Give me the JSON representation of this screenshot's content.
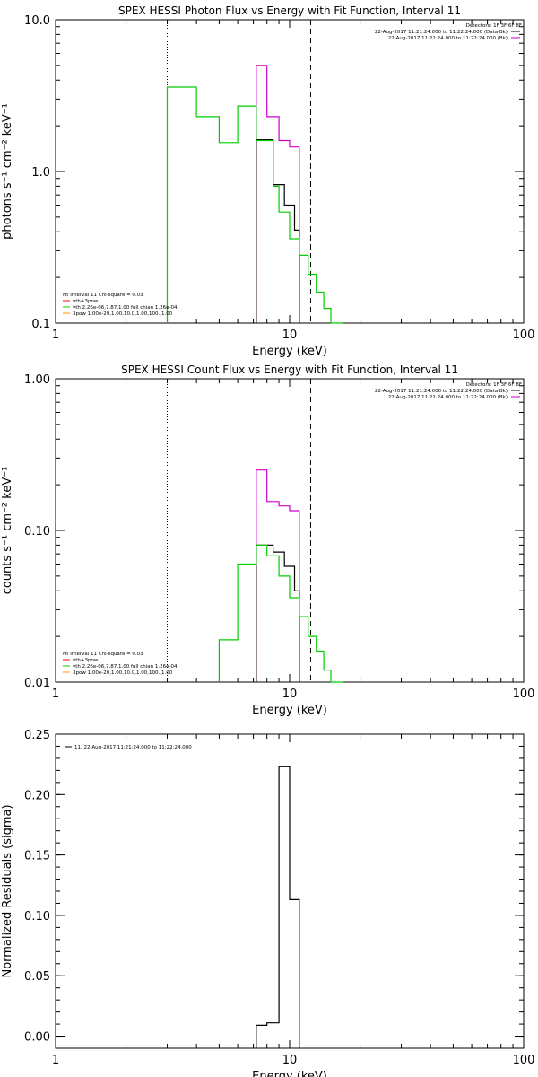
{
  "chart_data": [
    {
      "type": "line",
      "title": "SPEX HESSI Photon Flux vs Energy with Fit Function, Interval 11",
      "xlabel": "Energy (keV)",
      "ylabel": "photons s⁻¹ cm⁻² keV⁻¹",
      "x_scale": "log",
      "y_scale": "log",
      "xlim": [
        1,
        100
      ],
      "ylim": [
        0.1,
        10
      ],
      "x_ticks": [
        {
          "v": 1,
          "label": "1"
        },
        {
          "v": 10,
          "label": "10"
        },
        {
          "v": 100,
          "label": "100"
        }
      ],
      "y_ticks": [
        {
          "v": 0.1,
          "label": "0.1"
        },
        {
          "v": 1,
          "label": "1.0"
        },
        {
          "v": 10,
          "label": "10.0"
        }
      ],
      "vlines": [
        {
          "x": 3.0,
          "style": "dotted"
        },
        {
          "x": 12.3,
          "style": "dashed"
        }
      ],
      "legend_top_right": [
        {
          "text": "Detectors: 1F 3F 6F 8F",
          "line": false,
          "color": "#000000"
        },
        {
          "text": "22-Aug-2017 11:21:24.000 to 11:22:24.000 (Data-Bk)",
          "line": true,
          "color": "#000000"
        },
        {
          "text": "22-Aug-2017 11:21:24.000 to 11:22:24.000 (Bk)",
          "line": true,
          "color": "#cc00cc"
        }
      ],
      "legend_bottom_left": [
        {
          "text": "Fit Interval 11    Chi-square = 0.03",
          "line": false,
          "color": "#000000"
        },
        {
          "text": "vth+3pow",
          "line": true,
          "color": "#ff0000"
        },
        {
          "text": "vth 2.26e-06,7.87,1.00  full chian 1.26e-04",
          "line": true,
          "color": "#00cc00"
        },
        {
          "text": "3pow 1.00e-20,1.00,10.0,1.00,100.,1.00",
          "line": true,
          "color": "#ff9900"
        }
      ],
      "series": [
        {
          "id": "bk",
          "color": "#cc00cc",
          "edges": [
            7.2,
            8.0,
            9.0,
            10.0,
            11.0
          ],
          "values": [
            5.0,
            2.3,
            1.6,
            1.45
          ]
        },
        {
          "id": "data",
          "color": "#000000",
          "edges": [
            7.2,
            8.0,
            8.5,
            9.0,
            9.5,
            10.0,
            10.5,
            11.0
          ],
          "values": [
            1.62,
            1.62,
            0.82,
            0.82,
            0.6,
            0.6,
            0.41
          ]
        },
        {
          "id": "model",
          "color": "#00cc00",
          "edges": [
            3.0,
            3.3,
            4.0,
            5.0,
            6.0,
            7.2,
            8.0,
            8.5,
            9.0,
            10.0,
            11.0,
            12.0,
            13.0,
            14.0,
            15.0,
            16.0,
            17.0
          ],
          "values": [
            3.6,
            3.6,
            2.3,
            1.55,
            2.7,
            1.6,
            1.6,
            0.8,
            0.54,
            0.36,
            0.28,
            0.21,
            0.16,
            0.125,
            0.1,
            0.08
          ]
        }
      ]
    },
    {
      "type": "line",
      "title": "SPEX HESSI Count Flux vs Energy with Fit Function, Interval 11",
      "xlabel": "Energy (keV)",
      "ylabel": "counts s⁻¹ cm⁻² keV⁻¹",
      "x_scale": "log",
      "y_scale": "log",
      "xlim": [
        1,
        100
      ],
      "ylim": [
        0.01,
        1
      ],
      "x_ticks": [
        {
          "v": 1,
          "label": "1"
        },
        {
          "v": 10,
          "label": "10"
        },
        {
          "v": 100,
          "label": "100"
        }
      ],
      "y_ticks": [
        {
          "v": 0.01,
          "label": "0.01"
        },
        {
          "v": 0.1,
          "label": "0.10"
        },
        {
          "v": 1,
          "label": "1.00"
        }
      ],
      "vlines": [
        {
          "x": 3.0,
          "style": "dotted"
        },
        {
          "x": 12.3,
          "style": "dashed"
        }
      ],
      "legend_top_right": [
        {
          "text": "Detectors: 1F 3F 6F 8F",
          "line": false,
          "color": "#000000"
        },
        {
          "text": "22-Aug-2017 11:21:24.000 to 11:22:24.000 (Data-Bk)",
          "line": true,
          "color": "#000000"
        },
        {
          "text": "22-Aug-2017 11:21:24.000 to 11:22:24.000 (Bk)",
          "line": true,
          "color": "#cc00cc"
        }
      ],
      "legend_bottom_left": [
        {
          "text": "Fit Interval 11    Chi-square = 0.03",
          "line": false,
          "color": "#000000"
        },
        {
          "text": "vth+3pow",
          "line": true,
          "color": "#ff0000"
        },
        {
          "text": "vth 2.26e-06,7.87,1.00  full chian 1.26e-04",
          "line": true,
          "color": "#00cc00"
        },
        {
          "text": "3pow 1.00e-20,1.00,10.0,1.00,100.,1.00",
          "line": true,
          "color": "#ff9900"
        }
      ],
      "series": [
        {
          "id": "bk",
          "color": "#cc00cc",
          "edges": [
            7.2,
            8.0,
            9.0,
            10.0,
            11.0
          ],
          "values": [
            0.25,
            0.155,
            0.145,
            0.135
          ]
        },
        {
          "id": "data",
          "color": "#000000",
          "edges": [
            7.2,
            8.0,
            8.5,
            9.0,
            9.5,
            10.0,
            10.5,
            11.0
          ],
          "values": [
            0.08,
            0.08,
            0.072,
            0.072,
            0.058,
            0.058,
            0.04
          ]
        },
        {
          "id": "model",
          "color": "#00cc00",
          "edges": [
            5.0,
            6.0,
            7.2,
            8.0,
            9.0,
            10.0,
            11.0,
            12.0,
            13.0,
            14.0,
            15.0,
            16.0,
            17.0
          ],
          "values": [
            0.019,
            0.06,
            0.08,
            0.068,
            0.05,
            0.036,
            0.027,
            0.02,
            0.016,
            0.012,
            0.0095,
            0.008
          ]
        }
      ]
    },
    {
      "type": "line",
      "title": "",
      "xlabel": "Energy (keV)",
      "ylabel": "Normalized Residuals (sigma)",
      "x_scale": "log",
      "y_scale": "linear",
      "xlim": [
        1,
        100
      ],
      "ylim": [
        -0.01,
        0.25
      ],
      "x_ticks": [
        {
          "v": 1,
          "label": "1"
        },
        {
          "v": 10,
          "label": "10"
        },
        {
          "v": 100,
          "label": "100"
        }
      ],
      "y_ticks": [
        {
          "v": 0,
          "label": "0.00"
        },
        {
          "v": 0.05,
          "label": "0.05"
        },
        {
          "v": 0.1,
          "label": "0.10"
        },
        {
          "v": 0.15,
          "label": "0.15"
        },
        {
          "v": 0.2,
          "label": "0.20"
        },
        {
          "v": 0.25,
          "label": "0.25"
        }
      ],
      "legend_top_left": [
        {
          "text": "11. 22-Aug-2017 11:21:24.000 to 11:22:24.000",
          "line": true,
          "color": "#000000"
        }
      ],
      "series": [
        {
          "id": "resid",
          "color": "#000000",
          "edges": [
            7.2,
            8.0,
            9.0,
            10.0,
            11.0
          ],
          "values": [
            0.009,
            0.011,
            0.223,
            0.113
          ],
          "baseline": -0.01
        }
      ]
    }
  ]
}
